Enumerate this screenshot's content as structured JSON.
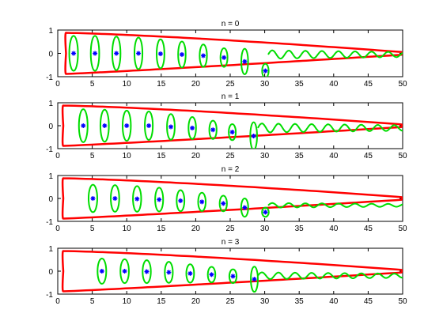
{
  "colors": {
    "envelope": "#ff0000",
    "ellipses": "#00dd00",
    "centers": "#0000ff",
    "axes": "#000000",
    "background": "#ffffff"
  },
  "chart_data": [
    {
      "type": "line",
      "title": "n = 0",
      "xlim": [
        0,
        50
      ],
      "ylim": [
        -1,
        1
      ],
      "xticks": [
        "0",
        "5",
        "10",
        "15",
        "20",
        "25",
        "30",
        "35",
        "40",
        "45",
        "50"
      ],
      "yticks": [
        "1",
        "0",
        "-1"
      ],
      "grid": false,
      "centers": [
        [
          2.3,
          0
        ],
        [
          5.4,
          0
        ],
        [
          8.5,
          0
        ],
        [
          11.7,
          0
        ],
        [
          14.9,
          -0.02
        ],
        [
          18.0,
          -0.05
        ],
        [
          21.1,
          -0.1
        ],
        [
          24.1,
          -0.18
        ],
        [
          27.1,
          -0.35
        ],
        [
          30.1,
          -0.75
        ]
      ],
      "ellipse_half_heights": [
        0.75,
        0.75,
        0.72,
        0.68,
        0.62,
        0.56,
        0.48,
        0.4,
        0.55,
        0.3
      ],
      "wave_start_x": 30.5,
      "wave_end_x": 50,
      "wave_amplitude": 0.18,
      "wave_offset": -0.05
    },
    {
      "type": "line",
      "title": "n = 1",
      "xlim": [
        0,
        50
      ],
      "ylim": [
        -1,
        1
      ],
      "xticks": [
        "0",
        "5",
        "10",
        "15",
        "20",
        "25",
        "30",
        "35",
        "40",
        "45",
        "50"
      ],
      "yticks": [
        "1",
        "0",
        "-1"
      ],
      "grid": false,
      "centers": [
        [
          3.7,
          0
        ],
        [
          6.8,
          0
        ],
        [
          10.0,
          0
        ],
        [
          13.2,
          0
        ],
        [
          16.4,
          -0.05
        ],
        [
          19.5,
          -0.1
        ],
        [
          22.5,
          -0.18
        ],
        [
          25.3,
          -0.28
        ],
        [
          28.4,
          -0.45
        ]
      ],
      "ellipse_half_heights": [
        0.72,
        0.7,
        0.66,
        0.62,
        0.56,
        0.48,
        0.4,
        0.35,
        0.6
      ],
      "wave_start_x": 29,
      "wave_end_x": 50,
      "wave_amplitude": 0.2,
      "wave_offset": -0.1
    },
    {
      "type": "line",
      "title": "n = 2",
      "xlim": [
        0,
        50
      ],
      "ylim": [
        -1,
        1
      ],
      "xticks": [
        "0",
        "5",
        "10",
        "15",
        "20",
        "25",
        "30",
        "35",
        "40",
        "45",
        "50"
      ],
      "yticks": [
        "1",
        "0",
        "-1"
      ],
      "grid": false,
      "centers": [
        [
          5.1,
          0
        ],
        [
          8.3,
          0
        ],
        [
          11.5,
          -0.02
        ],
        [
          14.7,
          -0.05
        ],
        [
          17.8,
          -0.1
        ],
        [
          20.9,
          -0.15
        ],
        [
          24.0,
          -0.22
        ],
        [
          27.1,
          -0.4
        ],
        [
          30.1,
          -0.6
        ]
      ],
      "ellipse_half_heights": [
        0.6,
        0.58,
        0.56,
        0.52,
        0.46,
        0.4,
        0.34,
        0.4,
        0.2
      ],
      "wave_start_x": 30.5,
      "wave_end_x": 50,
      "wave_amplitude": 0.1,
      "wave_offset": -0.3
    },
    {
      "type": "line",
      "title": "n = 3",
      "xlim": [
        0,
        50
      ],
      "ylim": [
        -1,
        1
      ],
      "xticks": [
        "0",
        "5",
        "10",
        "15",
        "20",
        "25",
        "30",
        "35",
        "40",
        "45",
        "50"
      ],
      "yticks": [
        "1",
        "0",
        "-1"
      ],
      "grid": false,
      "centers": [
        [
          6.4,
          0
        ],
        [
          9.7,
          0
        ],
        [
          12.9,
          -0.02
        ],
        [
          16.1,
          -0.05
        ],
        [
          19.2,
          -0.1
        ],
        [
          22.3,
          -0.15
        ],
        [
          25.4,
          -0.22
        ],
        [
          28.5,
          -0.35
        ]
      ],
      "ellipse_half_heights": [
        0.55,
        0.52,
        0.5,
        0.46,
        0.4,
        0.34,
        0.3,
        0.55
      ],
      "wave_start_x": 29,
      "wave_end_x": 50,
      "wave_amplitude": 0.15,
      "wave_offset": -0.2
    }
  ]
}
